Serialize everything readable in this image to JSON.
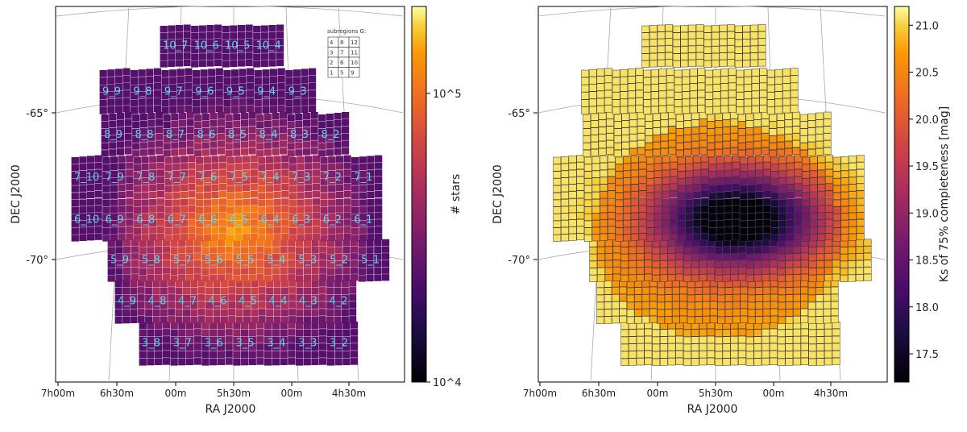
{
  "chart_data": [
    {
      "type": "heatmap",
      "xlabel": "RA J2000",
      "ylabel": "DEC J2000",
      "x_ticks": [
        "7h00m",
        "6h30m",
        "00m",
        "5h30m",
        "00m",
        "4h30m"
      ],
      "y_ticks": [
        "-65°",
        "-70°"
      ],
      "colorbar": {
        "label": "# stars",
        "scale": "log",
        "range": [
          10000,
          200000
        ],
        "ticks": [
          "10^4",
          "10^5"
        ],
        "colormap": "inferno"
      },
      "tiles": [
        "10_7",
        "10_6",
        "10_5",
        "10_4",
        "9_9",
        "9_8",
        "9_7",
        "9_6",
        "9_5",
        "9_4",
        "9_3",
        "8_9",
        "8_8",
        "8_7",
        "8_6",
        "8_5",
        "8_4",
        "8_3",
        "8_2",
        "7_10",
        "7_9",
        "7_8",
        "7_7",
        "7_6",
        "7_5",
        "7_4",
        "7_3",
        "7_2",
        "7_1",
        "6_10",
        "6_9",
        "6_8",
        "6_7",
        "6_6",
        "6_5",
        "6_4",
        "6_3",
        "6_2",
        "6_1",
        "5_9",
        "5_8",
        "5_7",
        "5_6",
        "5_5",
        "5_4",
        "5_3",
        "5_2",
        "5_1",
        "4_9",
        "4_8",
        "4_7",
        "4_6",
        "4_5",
        "4_4",
        "4_3",
        "4_2",
        "3_8",
        "3_7",
        "3_6",
        "3_5",
        "3_4",
        "3_3",
        "3_2"
      ],
      "inset": {
        "title": "subregions G:",
        "grid": [
          [
            "4",
            "8",
            "12"
          ],
          [
            "3",
            "7",
            "11"
          ],
          [
            "2",
            "6",
            "10"
          ],
          [
            "1",
            "5",
            "9"
          ]
        ]
      }
    },
    {
      "type": "heatmap",
      "xlabel": "RA J2000",
      "ylabel": "DEC J2000",
      "x_ticks": [
        "7h00m",
        "6h30m",
        "00m",
        "5h30m",
        "00m",
        "4h30m"
      ],
      "y_ticks": [
        "-65°",
        "-70°"
      ],
      "colorbar": {
        "label": "Ks of 75% completeness [mag]",
        "scale": "linear",
        "range": [
          17.2,
          21.2
        ],
        "ticks": [
          "17.5",
          "18.0",
          "18.5",
          "19.0",
          "19.5",
          "20.0",
          "20.5",
          "21.0"
        ],
        "colormap": "inferno"
      }
    }
  ]
}
